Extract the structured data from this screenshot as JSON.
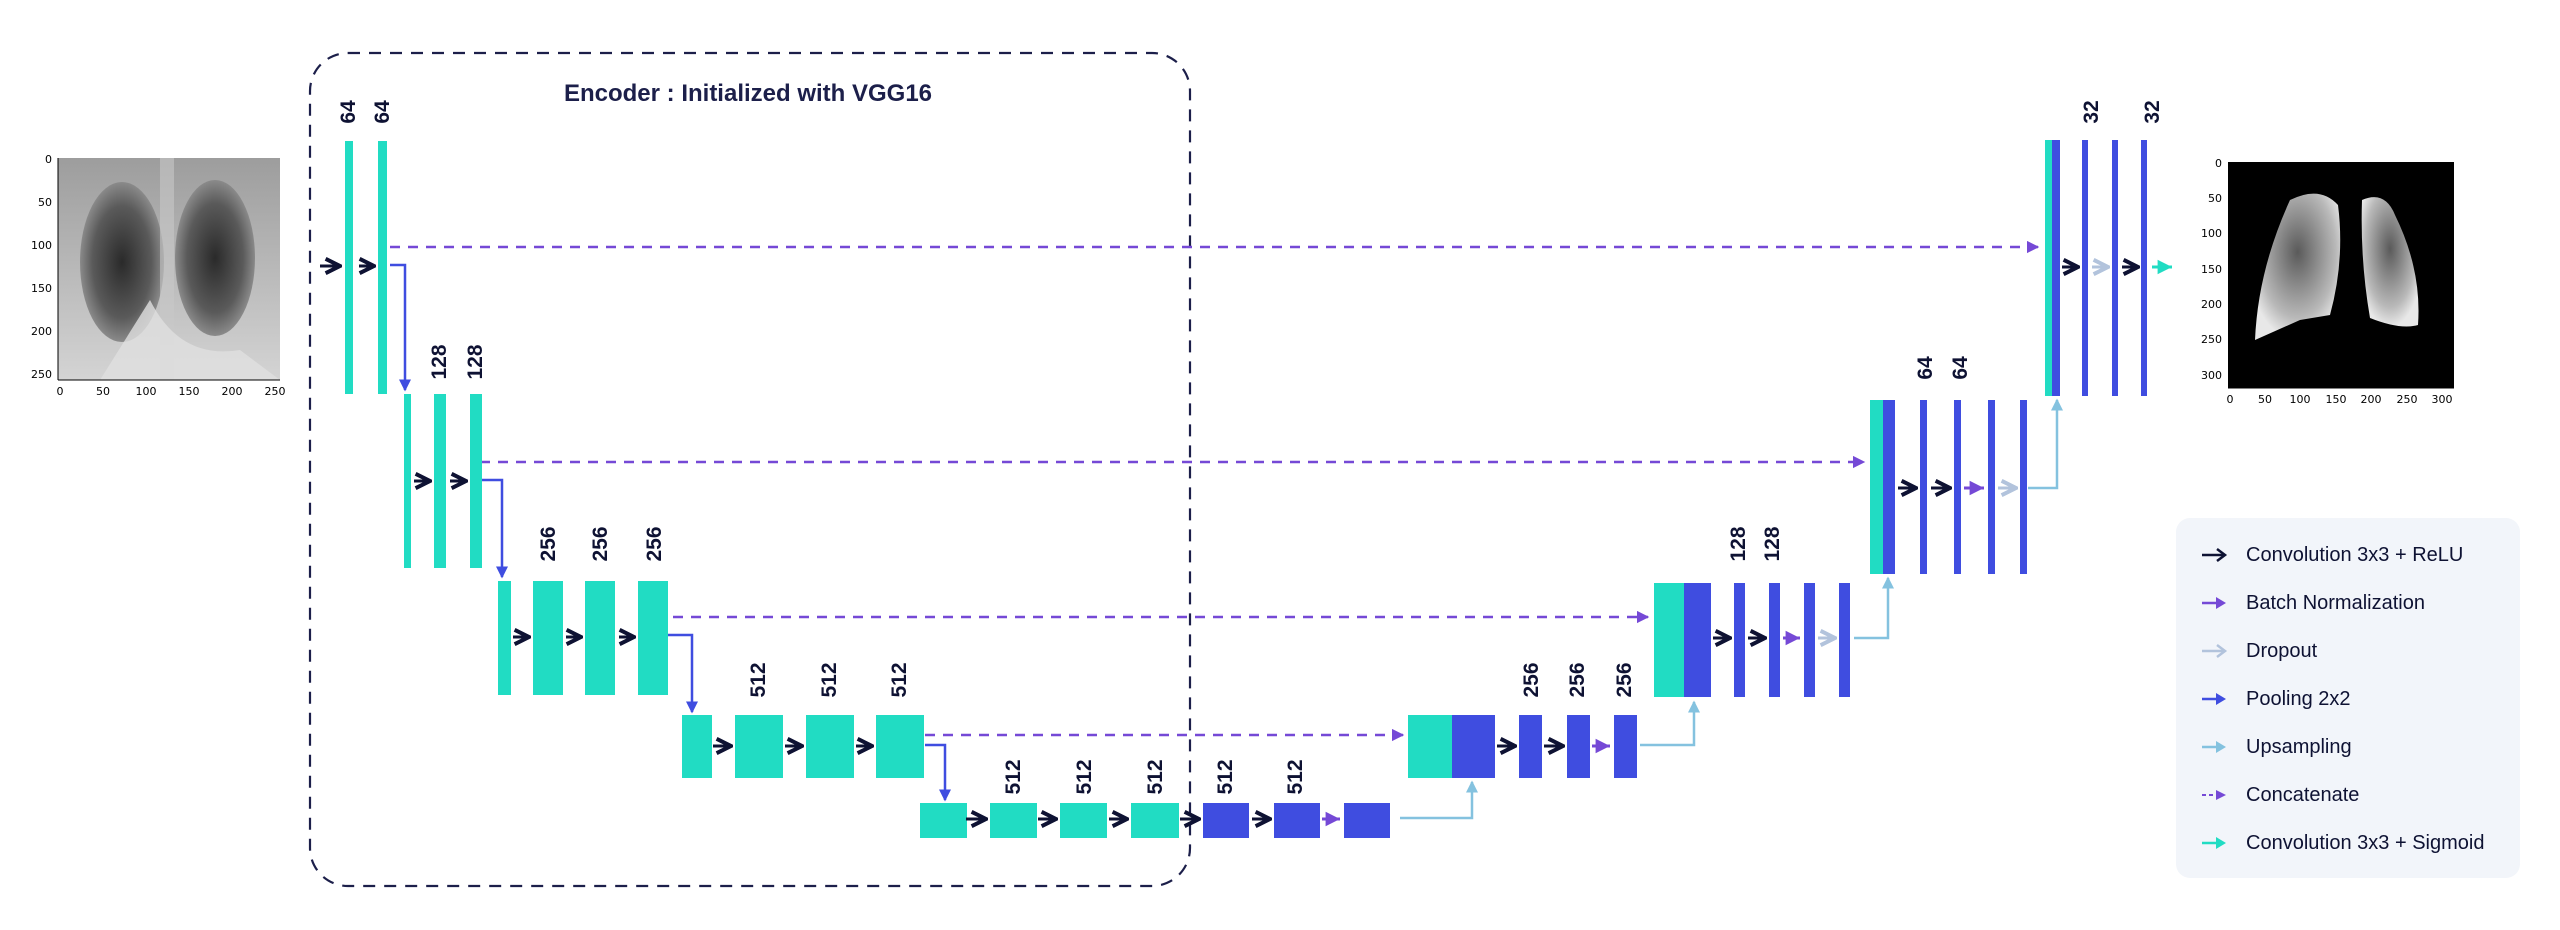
{
  "encoder_title": "Encoder : Initialized with VGG16",
  "colors": {
    "encoder_block": "#21dcc3",
    "decoder_block": "#3f4de0",
    "relu_arrow": "#0e1233",
    "batchnorm_arrow": "#7549d6",
    "dropout_arrow": "#b2c3dc",
    "pooling_arrow": "#3f4de0",
    "upsampling_arrow": "#84c2df",
    "concat_arrow": "#7549d6",
    "sigmoid_arrow": "#21dcc3",
    "encoder_box": "#1c1f4a"
  },
  "channel_labels": {
    "enc1": [
      "64",
      "64"
    ],
    "enc2": [
      "128",
      "128"
    ],
    "enc3": [
      "256",
      "256",
      "256"
    ],
    "enc4": [
      "512",
      "512",
      "512"
    ],
    "bottleneck": [
      "512",
      "512",
      "512",
      "512",
      "512"
    ],
    "dec4": [
      "256",
      "256",
      "256"
    ],
    "dec3": [
      "128",
      "128"
    ],
    "dec2": [
      "64",
      "64"
    ],
    "dec1": [
      "32",
      "32"
    ]
  },
  "input_image": {
    "icon": "chest-xray-image",
    "x_ticks": [
      "0",
      "50",
      "100",
      "150",
      "200",
      "250"
    ],
    "y_ticks": [
      "0",
      "50",
      "100",
      "150",
      "200",
      "250"
    ]
  },
  "output_image": {
    "icon": "lung-mask-image",
    "x_ticks": [
      "0",
      "50",
      "100",
      "150",
      "200",
      "250",
      "300"
    ],
    "y_ticks": [
      "0",
      "50",
      "100",
      "150",
      "200",
      "250",
      "300"
    ]
  },
  "legend": [
    {
      "key": "relu",
      "label": "Convolution 3x3 + ReLU"
    },
    {
      "key": "batchnorm",
      "label": "Batch Normalization"
    },
    {
      "key": "dropout",
      "label": "Dropout"
    },
    {
      "key": "pooling",
      "label": "Pooling 2x2"
    },
    {
      "key": "upsampling",
      "label": "Upsampling"
    },
    {
      "key": "concat",
      "label": "Concatenate"
    },
    {
      "key": "sigmoid",
      "label": "Convolution 3x3 + Sigmoid"
    }
  ]
}
